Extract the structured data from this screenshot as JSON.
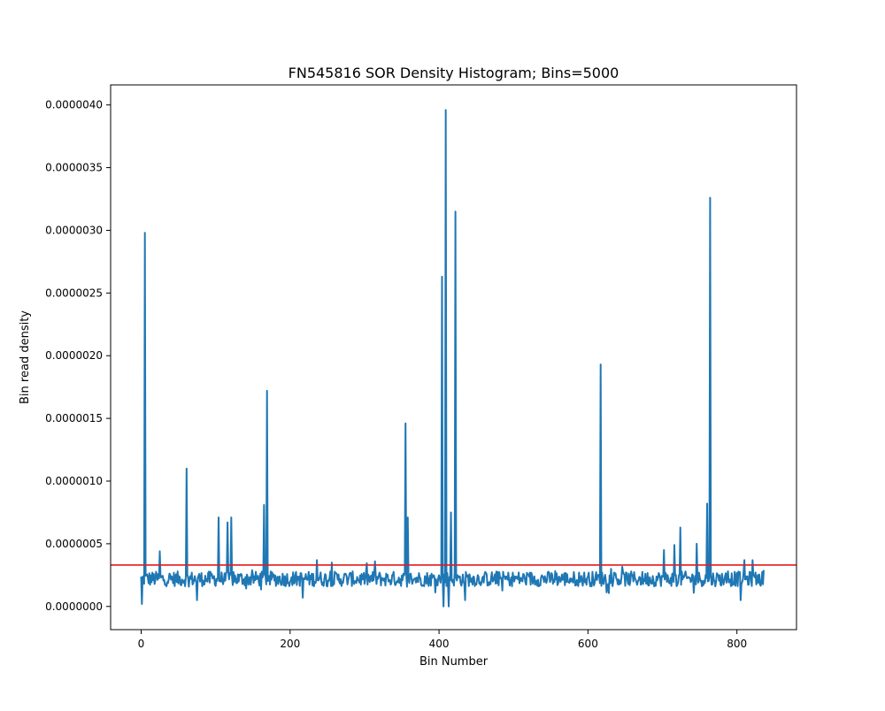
{
  "chart_data": {
    "type": "line",
    "title": "FN545816 SOR Density Histogram; Bins=5000",
    "xlabel": "Bin Number",
    "ylabel": "Bin read density",
    "xlim": [
      -41,
      880
    ],
    "ylim": [
      -1.85e-07,
      4.16e-06
    ],
    "x_ticks": [
      0,
      200,
      400,
      600,
      800
    ],
    "x_tick_labels": [
      "0",
      "200",
      "400",
      "600",
      "800"
    ],
    "y_ticks": [
      0,
      5e-07,
      1e-06,
      1.5e-06,
      2e-06,
      2.5e-06,
      3e-06,
      3.5e-06,
      4e-06
    ],
    "y_tick_labels": [
      "0.0000000",
      "0.0000005",
      "0.0000010",
      "0.0000015",
      "0.0000020",
      "0.0000025",
      "0.0000030",
      "0.0000035",
      "0.0000040"
    ],
    "grid": false,
    "colors": {
      "series": "#1f77b4",
      "threshold": "#e31a1c"
    },
    "series": [
      {
        "x_start": 0,
        "x_end": 836,
        "baseline": 2.2e-07,
        "peaks": [
          {
            "x": 1,
            "y": 2e-08
          },
          {
            "x": 5,
            "y": 2.98e-06
          },
          {
            "x": 25,
            "y": 4.4e-07
          },
          {
            "x": 61,
            "y": 1.1e-06
          },
          {
            "x": 75,
            "y": 5e-08
          },
          {
            "x": 104,
            "y": 7.1e-07
          },
          {
            "x": 116,
            "y": 6.7e-07
          },
          {
            "x": 121,
            "y": 7.1e-07
          },
          {
            "x": 165,
            "y": 8.1e-07
          },
          {
            "x": 169,
            "y": 1.72e-06
          },
          {
            "x": 217,
            "y": 7e-08
          },
          {
            "x": 236,
            "y": 3.7e-07
          },
          {
            "x": 256,
            "y": 3.5e-07
          },
          {
            "x": 314,
            "y": 3.6e-07
          },
          {
            "x": 355,
            "y": 1.46e-06
          },
          {
            "x": 358,
            "y": 7.1e-07
          },
          {
            "x": 404,
            "y": 2.63e-06
          },
          {
            "x": 406,
            "y": 0.0
          },
          {
            "x": 409,
            "y": 3.96e-06
          },
          {
            "x": 413,
            "y": 0.0
          },
          {
            "x": 416,
            "y": 7.5e-07
          },
          {
            "x": 422,
            "y": 3.15e-06
          },
          {
            "x": 435,
            "y": 5e-08
          },
          {
            "x": 617,
            "y": 1.93e-06
          },
          {
            "x": 702,
            "y": 4.5e-07
          },
          {
            "x": 716,
            "y": 4.9e-07
          },
          {
            "x": 724,
            "y": 6.3e-07
          },
          {
            "x": 746,
            "y": 5e-07
          },
          {
            "x": 760,
            "y": 8.2e-07
          },
          {
            "x": 764,
            "y": 3.26e-06
          },
          {
            "x": 805,
            "y": 5e-08
          },
          {
            "x": 810,
            "y": 3.7e-07
          },
          {
            "x": 821,
            "y": 3.7e-07
          },
          {
            "x": 836,
            "y": 2.9e-07
          }
        ]
      }
    ],
    "threshold_y": 3.3e-07
  }
}
